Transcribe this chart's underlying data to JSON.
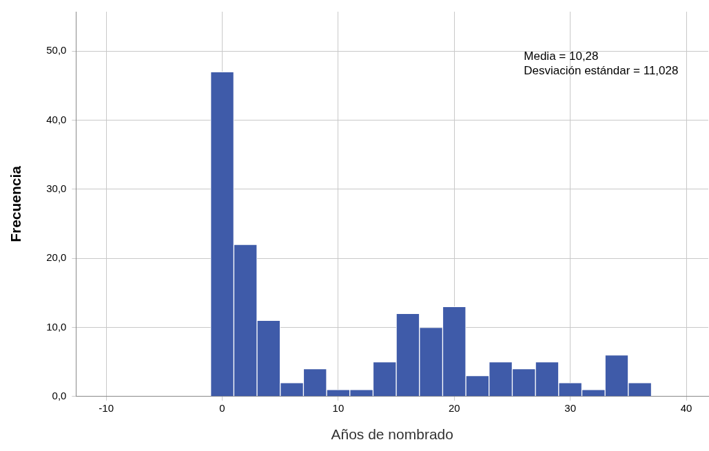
{
  "chart_data": {
    "type": "histogram",
    "xlabel": "Años de nombrado",
    "ylabel": "Frecuencia",
    "bins": [
      -1,
      1,
      3,
      5,
      7,
      9,
      11,
      13,
      15,
      17,
      19,
      21,
      23,
      25,
      27,
      29,
      31,
      33,
      35,
      37
    ],
    "values": [
      47,
      22,
      11,
      2,
      4,
      1,
      1,
      5,
      12,
      10,
      13,
      3,
      5,
      4,
      5,
      2,
      1,
      6,
      2
    ],
    "color": "#3f5ba9",
    "xlim": [
      -12.6,
      41.9
    ],
    "xticks": [
      -10,
      0,
      10,
      20,
      30,
      40
    ],
    "ylim": [
      0,
      55.7
    ],
    "yticks": [
      {
        "value": 0,
        "label": "0,0"
      },
      {
        "value": 10,
        "label": "10,0"
      },
      {
        "value": 20,
        "label": "20,0"
      },
      {
        "value": 30,
        "label": "30,0"
      },
      {
        "value": 40,
        "label": "40,0"
      },
      {
        "value": 50,
        "label": "50,0"
      }
    ],
    "grid": true,
    "legend": false,
    "annotations": [
      "Media = 10,28",
      "Desviación estándar = 11,028"
    ]
  }
}
